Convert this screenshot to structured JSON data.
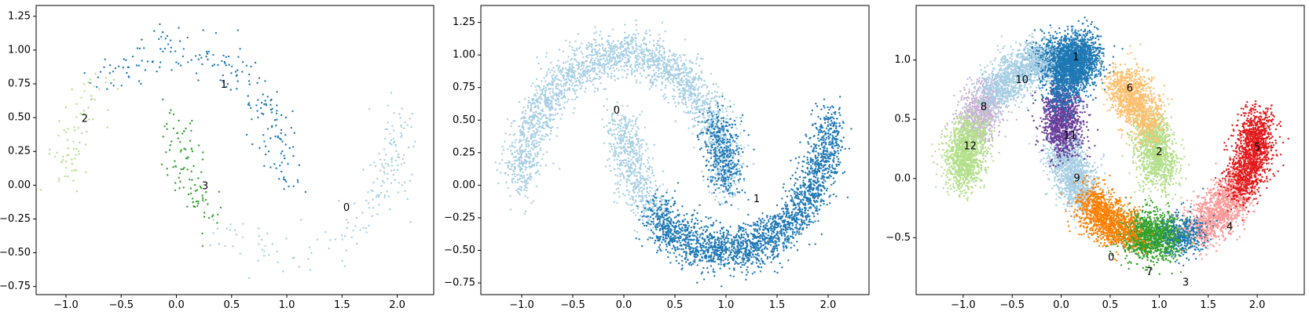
{
  "chart_data": [
    {
      "type": "scatter",
      "xticks": [
        "−1.0",
        "−0.5",
        "0.0",
        "0.5",
        "1.0",
        "1.5",
        "2.0"
      ],
      "yticks": [
        "−0.75",
        "−0.50",
        "−0.25",
        "0.00",
        "0.25",
        "0.50",
        "0.75",
        "1.00",
        "1.25"
      ],
      "xlim": [
        -1.27,
        2.33
      ],
      "ylim": [
        -0.81,
        1.33
      ],
      "clusters": [
        {
          "label": "0",
          "color": "#a6cee3",
          "label_pos": [
            1.54,
            -0.17
          ],
          "kind": "lower_moon",
          "t_range": [
            0.78,
            1.0
          ],
          "n": 110,
          "seed": 11
        },
        {
          "label": "1",
          "color": "#1f78b4",
          "label_pos": [
            0.43,
            0.74
          ],
          "kind": "upper_moon",
          "t_range": [
            0.0,
            0.48
          ],
          "n": 150,
          "seed": 12
        },
        {
          "label": "2",
          "color": "#b2df8a",
          "label_pos": [
            -0.83,
            0.49
          ],
          "kind": "upper_moon",
          "t_range": [
            0.74,
            1.0
          ],
          "n": 75,
          "seed": 13
        },
        {
          "label": "3",
          "color": "#33a02c",
          "label_pos": [
            0.26,
            -0.01
          ],
          "kind": "lower_moon",
          "t_range": [
            0.0,
            0.27
          ],
          "n": 100,
          "seed": 14
        },
        {
          "label": "",
          "color": "#a6cee3",
          "kind": "lower_moon",
          "t_range": [
            0.27,
            0.78
          ],
          "n": 70,
          "seed": 15
        },
        {
          "label": "",
          "color": "#1f78b4",
          "kind": "upper_moon",
          "t_range": [
            0.48,
            0.74
          ],
          "n": 60,
          "seed": 16
        }
      ]
    },
    {
      "type": "scatter",
      "xticks": [
        "−1.0",
        "−0.5",
        "0.0",
        "0.5",
        "1.0",
        "1.5",
        "2.0"
      ],
      "yticks": [
        "−0.75",
        "−0.50",
        "−0.25",
        "0.00",
        "0.25",
        "0.50",
        "0.75",
        "1.00",
        "1.25"
      ],
      "xlim": [
        -1.4,
        2.4
      ],
      "ylim": [
        -0.84,
        1.38
      ],
      "clusters": [
        {
          "label": "0",
          "color": "#a6cee3",
          "label_pos": [
            -0.07,
            0.57
          ],
          "kind": "upper_moon",
          "t_range": [
            0.0,
            1.0
          ],
          "n": 2400,
          "seed": 21
        },
        {
          "label": "",
          "color": "#a6cee3",
          "kind": "lower_moon",
          "t_range": [
            0.0,
            0.25
          ],
          "n": 600,
          "seed": 22
        },
        {
          "label": "1",
          "color": "#1f78b4",
          "label_pos": [
            1.3,
            -0.11
          ],
          "kind": "lower_moon",
          "t_range": [
            0.25,
            1.0
          ],
          "n": 2300,
          "seed": 23
        },
        {
          "label": "",
          "color": "#1f78b4",
          "kind": "upper_moon",
          "t_range": [
            0.0,
            0.16
          ],
          "n": 400,
          "seed": 24
        }
      ]
    },
    {
      "type": "scatter",
      "xticks": [
        "−1.0",
        "−0.5",
        "0.0",
        "0.5",
        "1.0",
        "1.5",
        "2.0"
      ],
      "yticks": [
        "−0.5",
        "0.0",
        "0.5",
        "1.0"
      ],
      "xlim": [
        -1.48,
        2.48
      ],
      "ylim": [
        -0.98,
        1.46
      ],
      "clusters": [
        {
          "label": "0",
          "color": "#a6cee3",
          "label_pos": [
            0.51,
            -0.67
          ],
          "kind": "lower_moon",
          "t_range": [
            0.06,
            0.24
          ],
          "n": 1300,
          "seed": 31
        },
        {
          "label": "1",
          "color": "#1f78b4",
          "label_pos": [
            0.15,
            1.02
          ],
          "kind": "upper_moon",
          "t_range": [
            0.4,
            0.56
          ],
          "n": 1300,
          "seed": 32
        },
        {
          "label": "2",
          "color": "#b2df8a",
          "label_pos": [
            1.0,
            0.22
          ],
          "kind": "upper_moon",
          "t_range": [
            0.0,
            0.15
          ],
          "n": 1100,
          "seed": 33
        },
        {
          "label": "3",
          "color": "#33a02c",
          "label_pos": [
            1.27,
            -0.88
          ],
          "kind": "lower_moon",
          "t_range": [
            0.4,
            0.55
          ],
          "n": 1300,
          "seed": 34
        },
        {
          "label": "4",
          "color": "#fb9a99",
          "label_pos": [
            1.72,
            -0.41
          ],
          "kind": "lower_moon",
          "t_range": [
            0.62,
            0.8
          ],
          "n": 1100,
          "seed": 35
        },
        {
          "label": "5",
          "color": "#e31a1c",
          "label_pos": [
            2.0,
            0.26
          ],
          "kind": "lower_moon",
          "t_range": [
            0.8,
            1.0
          ],
          "n": 1300,
          "seed": 36
        },
        {
          "label": "6",
          "color": "#fdbf6f",
          "label_pos": [
            0.7,
            0.76
          ],
          "kind": "upper_moon",
          "t_range": [
            0.15,
            0.3
          ],
          "n": 1100,
          "seed": 37
        },
        {
          "label": "7",
          "color": "#ff7f00",
          "label_pos": [
            0.9,
            -0.79
          ],
          "kind": "lower_moon",
          "t_range": [
            0.24,
            0.4
          ],
          "n": 1100,
          "seed": 38
        },
        {
          "label": "8",
          "color": "#cab2d6",
          "label_pos": [
            -0.79,
            0.6
          ],
          "kind": "upper_moon",
          "t_range": [
            0.76,
            0.86
          ],
          "n": 800,
          "seed": 39
        },
        {
          "label": "9",
          "color": "#6a3d9a",
          "label_pos": [
            0.16,
            0.0
          ],
          "kind": "lower_moon",
          "t_range": [
            -0.06,
            0.06
          ],
          "n": 1000,
          "seed": 40
        },
        {
          "label": "10",
          "color": "#a6cee3",
          "label_pos": [
            -0.4,
            0.83
          ],
          "kind": "upper_moon",
          "t_range": [
            0.56,
            0.76
          ],
          "n": 1100,
          "seed": 41
        },
        {
          "label": "11",
          "color": "#1f78b4",
          "label_pos": [
            0.09,
            0.36
          ],
          "kind": "lower_moon",
          "t_range": [
            -0.22,
            -0.06
          ],
          "n": 1100,
          "seed": 42
        },
        {
          "label": "12",
          "color": "#b2df8a",
          "label_pos": [
            -0.93,
            0.27
          ],
          "kind": "upper_moon",
          "t_range": [
            0.86,
            1.0
          ],
          "n": 1100,
          "seed": 43
        },
        {
          "label": "",
          "color": "#1f78b4",
          "kind": "lower_moon",
          "t_range": [
            0.55,
            0.62
          ],
          "n": 300,
          "seed": 44
        }
      ]
    }
  ]
}
